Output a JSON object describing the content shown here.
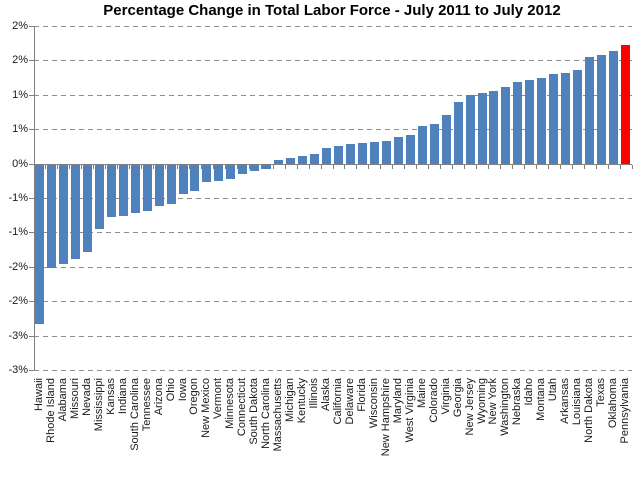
{
  "chart_data": {
    "type": "bar",
    "title": "Percentage Change in Total Labor Force - July 2011 to July 2012",
    "xlabel": "",
    "ylabel": "",
    "legend": "none",
    "grid": "horizontal-dashed",
    "ylim": [
      -3.0,
      2.0
    ],
    "ytick_interval": 0.5,
    "ytick_labels_top_to_bottom": [
      "2%",
      "2%",
      "1%",
      "1%",
      "0%",
      "-1%",
      "-1%",
      "-2%",
      "-2%",
      "-3%",
      "-3%"
    ],
    "x_axis_label_rotation": "rotated-up-90",
    "bar_color_default": "#4F81BD",
    "highlight_color": "#FF0000",
    "highlighted_category": "Pennsylvania",
    "categories": [
      "Hawaii",
      "Rhode Island",
      "Alabama",
      "Missouri",
      "Nevada",
      "Mississippi",
      "Kansas",
      "Indiana",
      "South Carolina",
      "Tennessee",
      "Arizona",
      "Ohio",
      "Iowa",
      "Oregon",
      "New Mexico",
      "Vermont",
      "Minnesota",
      "Connecticut",
      "South Dakota",
      "North Carolina",
      "Massachusetts",
      "Michigan",
      "Kentucky",
      "Illinois",
      "Alaska",
      "California",
      "Delaware",
      "Florida",
      "Wisconsin",
      "New Hampshire",
      "Maryland",
      "West Virginia",
      "Maine",
      "Colorado",
      "Virginia",
      "Georgia",
      "New Jersey",
      "Wyoming",
      "New York",
      "Washington",
      "Nebraska",
      "Idaho",
      "Montana",
      "Utah",
      "Arkansas",
      "Louisiana",
      "North Dakota",
      "Texas",
      "Oklahoma",
      "Pennsylvania"
    ],
    "values": [
      -2.31,
      -1.5,
      -1.45,
      -1.37,
      -1.27,
      -0.93,
      -0.76,
      -0.74,
      -0.71,
      -0.68,
      -0.6,
      -0.57,
      -0.43,
      -0.38,
      -0.26,
      -0.24,
      -0.21,
      -0.14,
      -0.1,
      -0.07,
      0.05,
      0.08,
      0.11,
      0.14,
      0.22,
      0.26,
      0.28,
      0.3,
      0.31,
      0.33,
      0.38,
      0.41,
      0.54,
      0.58,
      0.71,
      0.89,
      1.0,
      1.02,
      1.05,
      1.11,
      1.18,
      1.22,
      1.24,
      1.3,
      1.31,
      1.36,
      1.55,
      1.58,
      1.63,
      1.73
    ]
  },
  "colors": {
    "background": "#FFFFFF",
    "gridline": "#8E8E8E",
    "axis_line": "#808080",
    "text": "#1A1A1A",
    "title_text": "#000000"
  }
}
